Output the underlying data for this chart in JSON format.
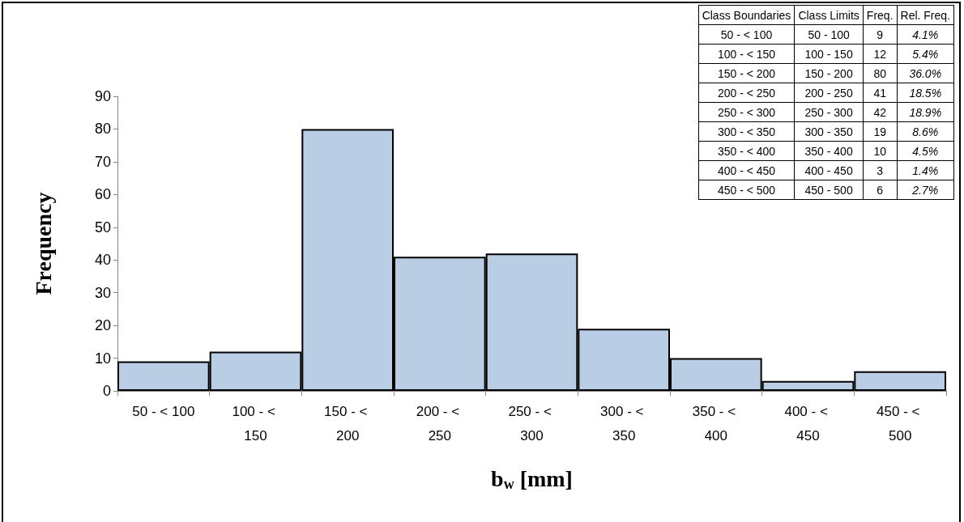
{
  "chart_data": {
    "type": "bar",
    "xlabel": "b$_{w}$ [mm]",
    "ylabel": "Frequency",
    "categories": [
      "50 - < 100",
      "100 - < 150",
      "150 - < 200",
      "200 - < 250",
      "250 - < 300",
      "300 - < 350",
      "350 - < 400",
      "400 - < 450",
      "450 - < 500"
    ],
    "values": [
      9,
      12,
      80,
      41,
      42,
      19,
      10,
      3,
      6
    ],
    "color": "#b9cde5",
    "ylim": [
      0,
      90
    ],
    "yticks": [
      0,
      10,
      20,
      30,
      40,
      50,
      60,
      70,
      80,
      90
    ],
    "grid": false,
    "annotations": [
      "Class Boundaries",
      "Class Limits",
      "Freq.",
      "Rel. Freq.",
      "9",
      "12",
      "80",
      "41",
      "42",
      "19",
      "10",
      "3",
      "6",
      "50 - 100",
      "100 - 150",
      "150 - 200",
      "200 - 250",
      "250 - 300",
      "300 - 350",
      "350 - 400",
      "400 - 450",
      "450 - 500",
      "4.1%",
      "5.4%",
      "36.0%",
      "18.5%",
      "18.9%",
      "8.6%",
      "4.5%",
      "1.4%",
      "2.7%"
    ]
  }
}
